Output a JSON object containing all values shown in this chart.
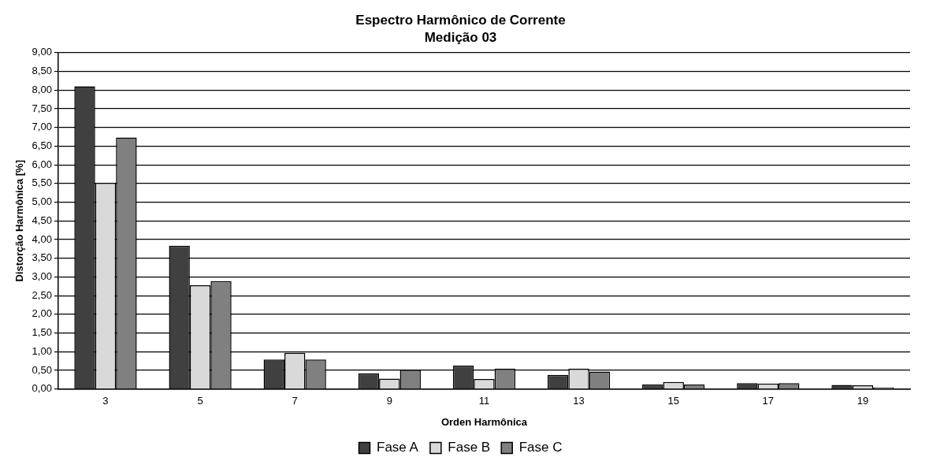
{
  "chart_data": {
    "type": "bar",
    "title": "Espectro Harmônico de Corrente",
    "subtitle": "Medição 03",
    "xlabel": "Orden Harmônica",
    "ylabel": "Distorção Harmônica [%]",
    "categories": [
      "3",
      "5",
      "7",
      "9",
      "11",
      "13",
      "15",
      "17",
      "19"
    ],
    "series": [
      {
        "name": "Fase A",
        "color": "#404040",
        "values": [
          8.1,
          3.83,
          0.79,
          0.42,
          0.63,
          0.38,
          0.12,
          0.16,
          0.11
        ]
      },
      {
        "name": "Fase B",
        "color": "#d9d9d9",
        "values": [
          5.52,
          2.78,
          0.97,
          0.28,
          0.27,
          0.55,
          0.19,
          0.15,
          0.1
        ]
      },
      {
        "name": "Fase C",
        "color": "#808080",
        "values": [
          6.73,
          2.89,
          0.79,
          0.52,
          0.55,
          0.47,
          0.12,
          0.16,
          0.05
        ]
      }
    ],
    "ylim": [
      0,
      9
    ],
    "yticks": [
      {
        "value": 0,
        "label": "0,00"
      },
      {
        "value": 0.5,
        "label": "0,50"
      },
      {
        "value": 1,
        "label": "1,00"
      },
      {
        "value": 1.5,
        "label": "1,50"
      },
      {
        "value": 2,
        "label": "2,00"
      },
      {
        "value": 2.5,
        "label": "2,50"
      },
      {
        "value": 3,
        "label": "3,00"
      },
      {
        "value": 3.5,
        "label": "3,50"
      },
      {
        "value": 4,
        "label": "4,00"
      },
      {
        "value": 4.5,
        "label": "4,50"
      },
      {
        "value": 5,
        "label": "5,00"
      },
      {
        "value": 5.5,
        "label": "5,50"
      },
      {
        "value": 6,
        "label": "6,00"
      },
      {
        "value": 6.5,
        "label": "6,50"
      },
      {
        "value": 7,
        "label": "7,00"
      },
      {
        "value": 7.5,
        "label": "7,50"
      },
      {
        "value": 8,
        "label": "8,00"
      },
      {
        "value": 8.5,
        "label": "8,50"
      },
      {
        "value": 9,
        "label": "9,00"
      }
    ],
    "grid": "y",
    "legend": "bottom"
  }
}
